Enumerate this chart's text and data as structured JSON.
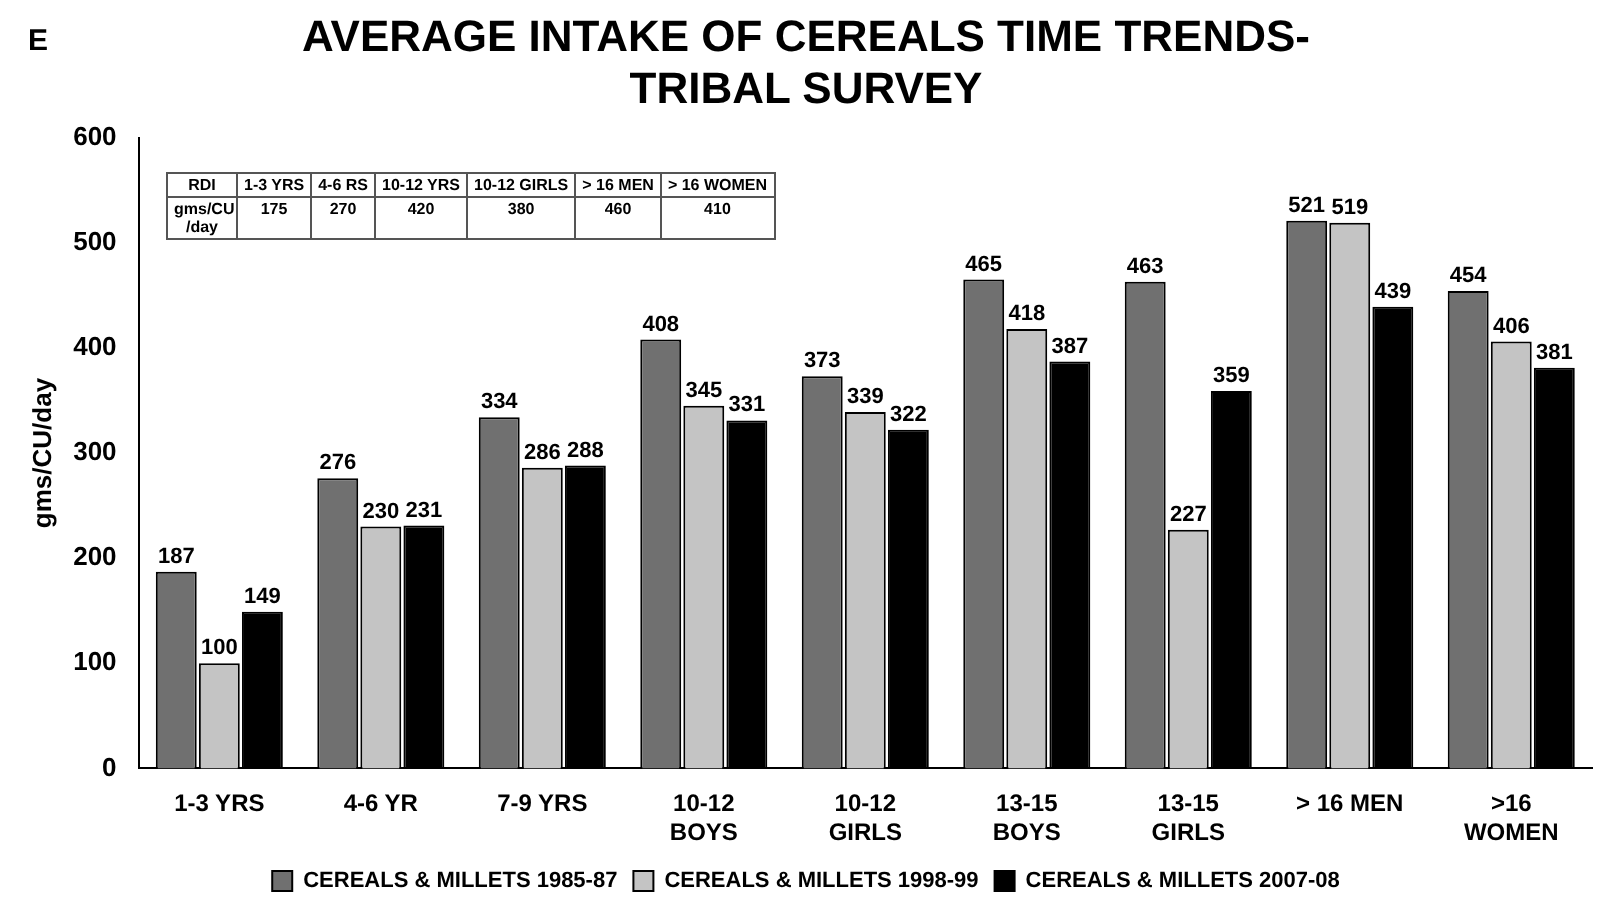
{
  "chart_data": {
    "type": "bar",
    "title": "AVERAGE INTAKE OF CEREALS TIME TRENDS-TRIBAL SURVEY",
    "ylabel": "gms/CU/day",
    "categories": [
      "1-3 YRS",
      "4-6 YR",
      "7-9 YRS",
      "10-12 BOYS",
      "10-12 GIRLS",
      "13-15 BOYS",
      "13-15 GIRLS",
      "> 16 MEN",
      ">16 WOMEN"
    ],
    "series": [
      {
        "name": "CEREALS & MILLETS 1985-87",
        "color": "#707070",
        "values": [
          187,
          276,
          334,
          408,
          373,
          465,
          463,
          521,
          454
        ]
      },
      {
        "name": "CEREALS & MILLETS 1998-99",
        "color": "#c4c4c4",
        "values": [
          100,
          230,
          286,
          345,
          339,
          418,
          227,
          519,
          406
        ]
      },
      {
        "name": "CEREALS & MILLETS 2007-08",
        "color": "#000000",
        "values": [
          149,
          231,
          288,
          331,
          322,
          387,
          359,
          439,
          381
        ]
      }
    ],
    "ylim": [
      0,
      600
    ],
    "yticks": [
      0,
      100,
      200,
      300,
      400,
      500,
      600
    ],
    "grid": false,
    "legend": "bottom",
    "data_labels": true,
    "annotations": [
      "E",
      "RDI",
      "1-3 YRS",
      "4-6 RS",
      "10-12 YRS",
      "10-12 GIRLS",
      "> 16 MEN",
      "> 16 WOMEN",
      "gms/CU /day",
      "175",
      "270",
      "420",
      "380",
      "460",
      "410"
    ]
  }
}
